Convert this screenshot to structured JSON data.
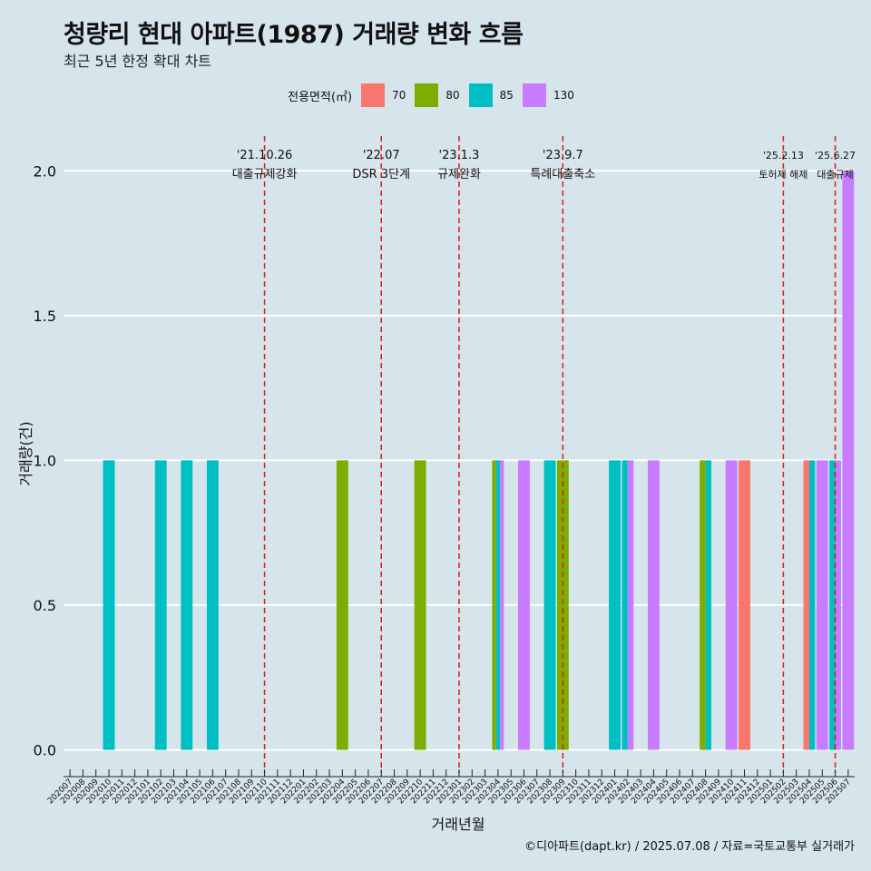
{
  "title": "청량리 현대 아파트(1987) 거래량 변화 흐름",
  "subtitle": "최근 5년 한정 확대 차트",
  "caption": "©디아파트(dapt.kr) / 2025.07.08 / 자료=국토교통부 실거래가",
  "colors": {
    "background": "#d6e4eb",
    "grid": "#ffffff",
    "event_line": "#e0191b",
    "70": "#f8766d",
    "80": "#7cae00",
    "85": "#00bfc4",
    "130": "#c77cff"
  },
  "chart_data": {
    "type": "bar",
    "xlabel": "거래년월",
    "ylabel": "거래량(건)",
    "ylim": [
      -0.08,
      2.12
    ],
    "yticks": [
      "0.0",
      "0.5",
      "1.0",
      "1.5",
      "2.0"
    ],
    "grid": true,
    "legend_title": "전용면적(㎡)",
    "legend_position": "top",
    "categories": [
      "202007",
      "202008",
      "202009",
      "202010",
      "202011",
      "202012",
      "202101",
      "202102",
      "202103",
      "202104",
      "202105",
      "202106",
      "202107",
      "202108",
      "202109",
      "202110",
      "202111",
      "202112",
      "202201",
      "202202",
      "202203",
      "202204",
      "202205",
      "202206",
      "202207",
      "202208",
      "202209",
      "202210",
      "202211",
      "202212",
      "202301",
      "202302",
      "202303",
      "202304",
      "202305",
      "202306",
      "202307",
      "202308",
      "202309",
      "202310",
      "202311",
      "202312",
      "202401",
      "202402",
      "202403",
      "202404",
      "202405",
      "202406",
      "202407",
      "202408",
      "202409",
      "202410",
      "202411",
      "202412",
      "202501",
      "202502",
      "202503",
      "202504",
      "202505",
      "202506",
      "202507"
    ],
    "series": [
      {
        "name": "70",
        "points": [
          [
            "202411",
            1
          ],
          [
            "202504",
            1
          ]
        ]
      },
      {
        "name": "80",
        "points": [
          [
            "202204",
            1
          ],
          [
            "202210",
            1
          ],
          [
            "202304",
            1
          ],
          [
            "202309",
            1
          ],
          [
            "202408",
            1
          ]
        ]
      },
      {
        "name": "85",
        "points": [
          [
            "202010",
            1
          ],
          [
            "202102",
            1
          ],
          [
            "202104",
            1
          ],
          [
            "202106",
            1
          ],
          [
            "202304",
            1
          ],
          [
            "202308",
            1
          ],
          [
            "202401",
            1
          ],
          [
            "202402",
            1
          ],
          [
            "202408",
            1
          ],
          [
            "202504",
            1
          ],
          [
            "202506",
            1
          ]
        ]
      },
      {
        "name": "130",
        "points": [
          [
            "202304",
            1
          ],
          [
            "202306",
            1
          ],
          [
            "202402",
            1
          ],
          [
            "202404",
            1
          ],
          [
            "202410",
            1
          ],
          [
            "202505",
            1
          ],
          [
            "202506",
            1
          ],
          [
            "202507",
            2
          ]
        ]
      }
    ],
    "events": [
      {
        "date": "'21.10.26",
        "label": "대출규제강화",
        "at": "202110"
      },
      {
        "date": "'22.07",
        "label": "DSR 3단계",
        "at": "202207"
      },
      {
        "date": "'23.1.3",
        "label": "규제완화",
        "at": "202301"
      },
      {
        "date": "'23.9.7",
        "label": "특례대출축소",
        "at": "202309"
      },
      {
        "date": "'25.2.13",
        "label": "토허제 해제",
        "at": "202502"
      },
      {
        "date": "'25.6.27",
        "label": "대출규제",
        "at": "202506"
      }
    ]
  }
}
